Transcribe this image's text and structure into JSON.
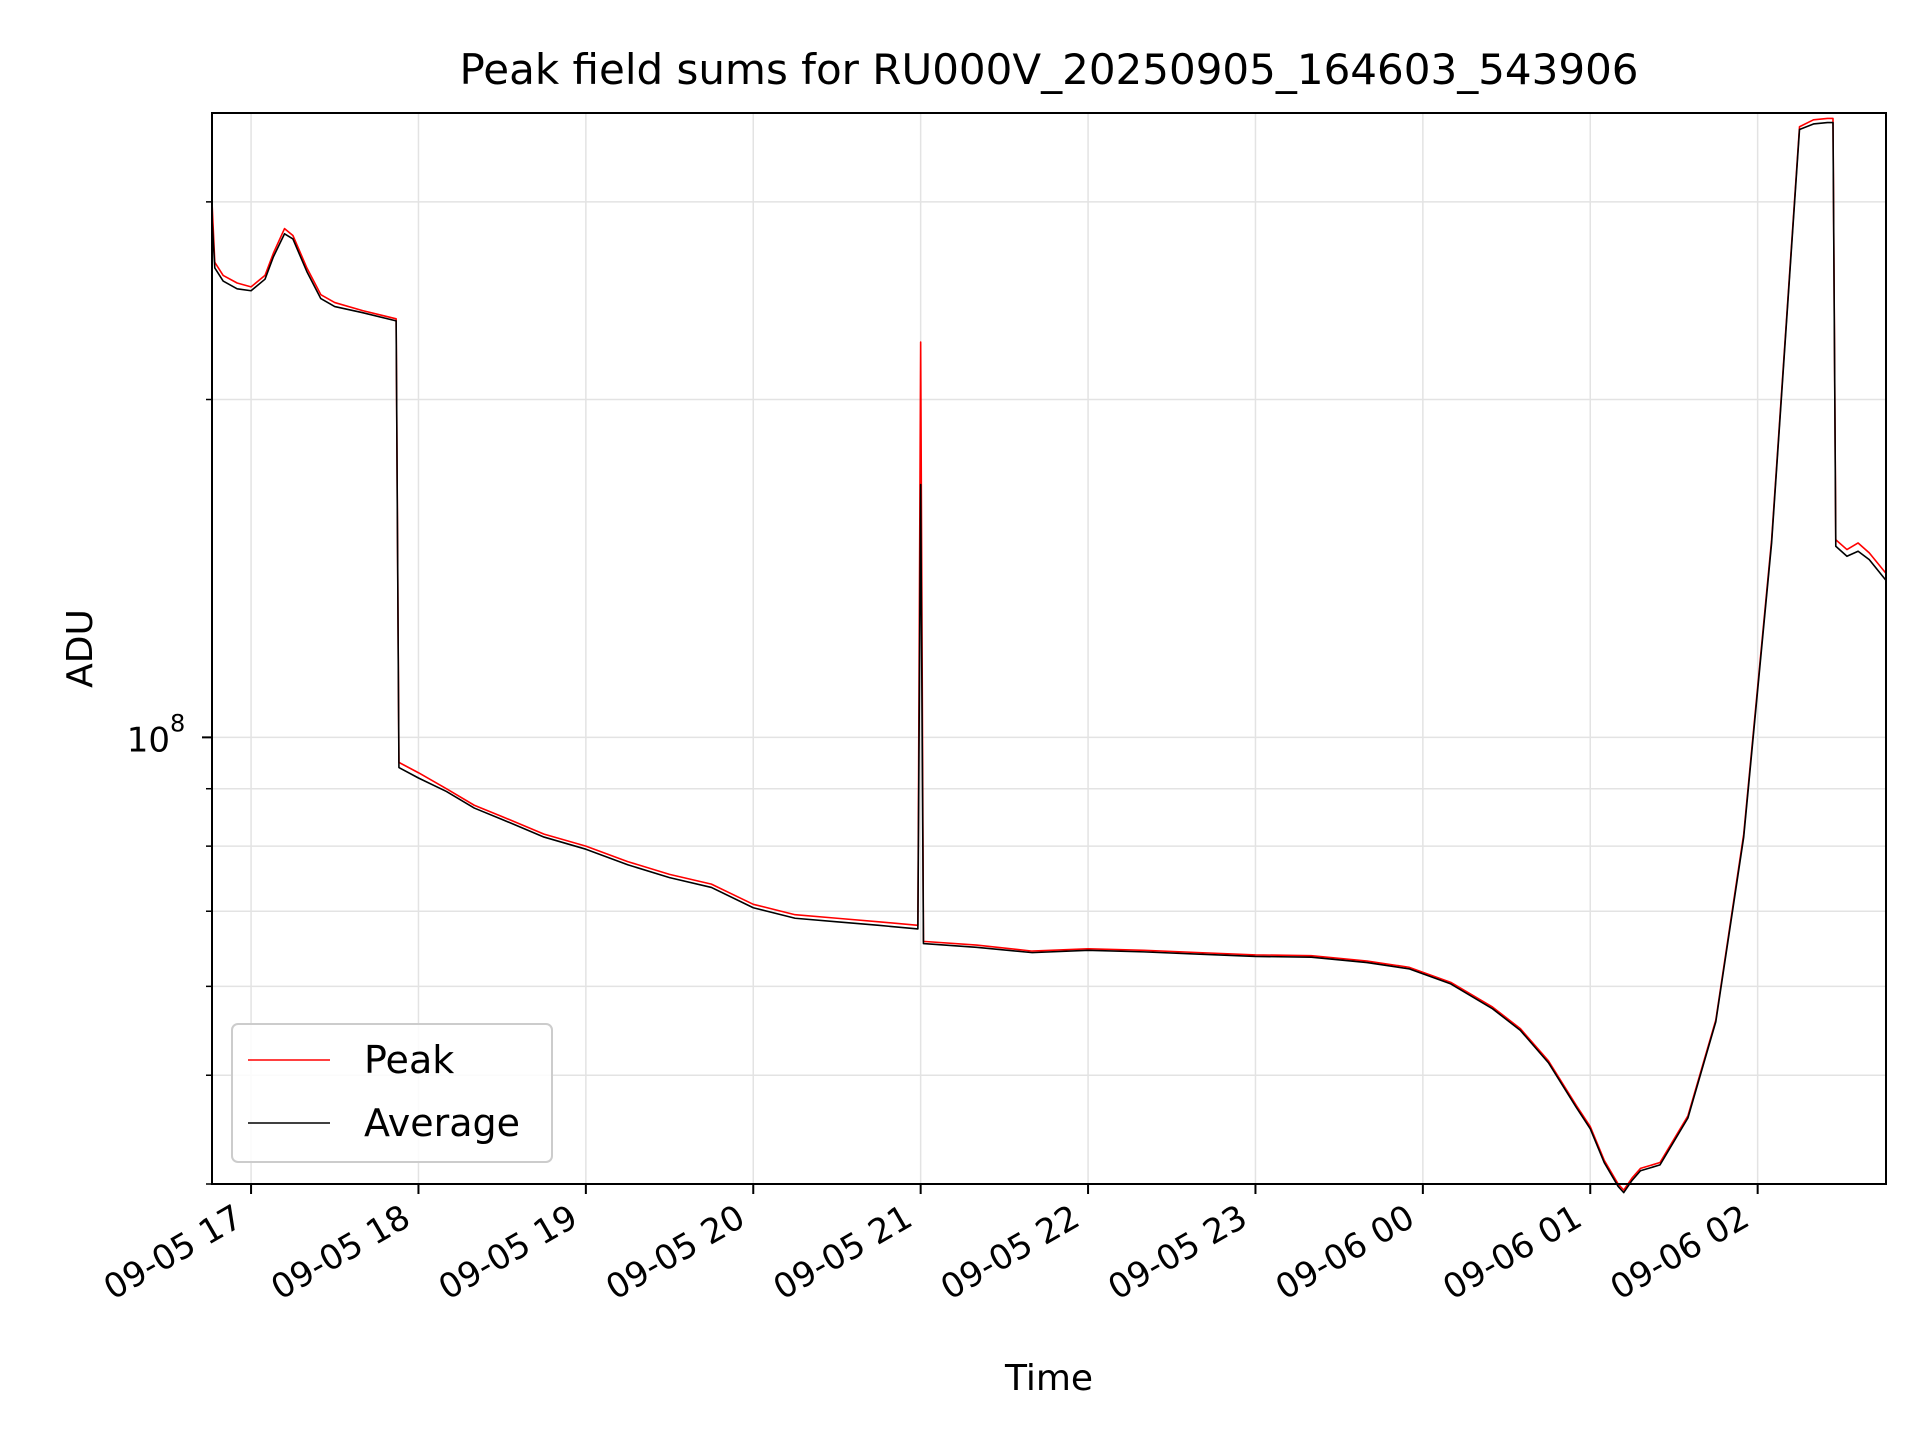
{
  "chart_data": {
    "type": "line",
    "title": "Peak field sums for RU000V_20250905_164603_543906",
    "xlabel": "Time",
    "ylabel": "ADU",
    "yscale": "log",
    "ylim": [
      40000000,
      360000000
    ],
    "xlim": [
      "2025-09-05 16:46",
      "2025-09-06 02:46"
    ],
    "x_ticks": [
      "09-05 17",
      "09-05 18",
      "09-05 19",
      "09-05 20",
      "09-05 21",
      "09-05 22",
      "09-05 23",
      "09-06 00",
      "09-06 01",
      "09-06 02"
    ],
    "x_tick_times": [
      "2025-09-05 17:00",
      "2025-09-05 18:00",
      "2025-09-05 19:00",
      "2025-09-05 20:00",
      "2025-09-05 21:00",
      "2025-09-05 22:00",
      "2025-09-05 23:00",
      "2025-09-06 00:00",
      "2025-09-06 01:00",
      "2025-09-06 02:00"
    ],
    "y_tick_label": "10",
    "y_tick_exponent": "8",
    "y_tick_value": 100000000,
    "grid": true,
    "legend": "lower-left",
    "series": [
      {
        "name": "Peak",
        "color": "#ff0000",
        "points": [
          [
            "2025-09-05 16:46",
            300000000
          ],
          [
            "2025-09-05 16:47",
            265000000
          ],
          [
            "2025-09-05 16:50",
            258000000
          ],
          [
            "2025-09-05 16:55",
            254000000
          ],
          [
            "2025-09-05 17:00",
            252000000
          ],
          [
            "2025-09-05 17:05",
            258000000
          ],
          [
            "2025-09-05 17:08",
            270000000
          ],
          [
            "2025-09-05 17:12",
            284000000
          ],
          [
            "2025-09-05 17:15",
            280000000
          ],
          [
            "2025-09-05 17:20",
            262000000
          ],
          [
            "2025-09-05 17:25",
            248000000
          ],
          [
            "2025-09-05 17:30",
            244000000
          ],
          [
            "2025-09-05 17:40",
            240000000
          ],
          [
            "2025-09-05 17:52",
            236000000
          ],
          [
            "2025-09-05 17:53",
            95000000
          ],
          [
            "2025-09-05 18:00",
            93000000
          ],
          [
            "2025-09-05 18:10",
            90000000
          ],
          [
            "2025-09-05 18:20",
            87000000
          ],
          [
            "2025-09-05 18:30",
            85000000
          ],
          [
            "2025-09-05 18:45",
            82000000
          ],
          [
            "2025-09-05 19:00",
            80000000
          ],
          [
            "2025-09-05 19:15",
            77500000
          ],
          [
            "2025-09-05 19:30",
            75500000
          ],
          [
            "2025-09-05 19:45",
            74000000
          ],
          [
            "2025-09-05 20:00",
            71000000
          ],
          [
            "2025-09-05 20:15",
            69500000
          ],
          [
            "2025-09-05 20:30",
            69000000
          ],
          [
            "2025-09-05 20:45",
            68500000
          ],
          [
            "2025-09-05 20:59",
            68000000
          ],
          [
            "2025-09-05 21:00",
            225000000
          ],
          [
            "2025-09-05 21:01",
            65800000
          ],
          [
            "2025-09-05 21:20",
            65300000
          ],
          [
            "2025-09-05 21:40",
            64500000
          ],
          [
            "2025-09-05 22:00",
            64800000
          ],
          [
            "2025-09-05 22:20",
            64600000
          ],
          [
            "2025-09-05 22:40",
            64300000
          ],
          [
            "2025-09-05 23:00",
            64000000
          ],
          [
            "2025-09-05 23:20",
            63900000
          ],
          [
            "2025-09-05 23:40",
            63200000
          ],
          [
            "2025-09-05 23:55",
            62400000
          ],
          [
            "2025-09-06 00:10",
            60500000
          ],
          [
            "2025-09-06 00:25",
            57500000
          ],
          [
            "2025-09-06 00:35",
            55000000
          ],
          [
            "2025-09-06 00:45",
            51500000
          ],
          [
            "2025-09-06 00:55",
            47000000
          ],
          [
            "2025-09-06 01:00",
            45000000
          ],
          [
            "2025-09-06 01:05",
            42000000
          ],
          [
            "2025-09-06 01:10",
            40000000
          ],
          [
            "2025-09-06 01:12",
            39500000
          ],
          [
            "2025-09-06 01:15",
            40500000
          ],
          [
            "2025-09-06 01:18",
            41300000
          ],
          [
            "2025-09-06 01:25",
            41800000
          ],
          [
            "2025-09-06 01:35",
            46000000
          ],
          [
            "2025-09-06 01:45",
            56000000
          ],
          [
            "2025-09-06 01:55",
            82000000
          ],
          [
            "2025-09-06 02:05",
            150000000
          ],
          [
            "2025-09-06 02:15",
            350000000
          ],
          [
            "2025-09-06 02:20",
            355000000
          ],
          [
            "2025-09-06 02:25",
            356000000
          ],
          [
            "2025-09-06 02:27",
            356000000
          ],
          [
            "2025-09-06 02:28",
            150000000
          ],
          [
            "2025-09-06 02:32",
            147000000
          ],
          [
            "2025-09-06 02:36",
            149000000
          ],
          [
            "2025-09-06 02:40",
            146000000
          ],
          [
            "2025-09-06 02:46",
            140000000
          ]
        ]
      },
      {
        "name": "Average",
        "color": "#000000",
        "points": [
          [
            "2025-09-05 16:46",
            290000000
          ],
          [
            "2025-09-05 16:47",
            262000000
          ],
          [
            "2025-09-05 16:50",
            255000000
          ],
          [
            "2025-09-05 16:55",
            251000000
          ],
          [
            "2025-09-05 17:00",
            250000000
          ],
          [
            "2025-09-05 17:05",
            256000000
          ],
          [
            "2025-09-05 17:08",
            268000000
          ],
          [
            "2025-09-05 17:12",
            281000000
          ],
          [
            "2025-09-05 17:15",
            278000000
          ],
          [
            "2025-09-05 17:20",
            260000000
          ],
          [
            "2025-09-05 17:25",
            246000000
          ],
          [
            "2025-09-05 17:30",
            242000000
          ],
          [
            "2025-09-05 17:40",
            239000000
          ],
          [
            "2025-09-05 17:52",
            235000000
          ],
          [
            "2025-09-05 17:53",
            94000000
          ],
          [
            "2025-09-05 18:00",
            92000000
          ],
          [
            "2025-09-05 18:10",
            89500000
          ],
          [
            "2025-09-05 18:20",
            86500000
          ],
          [
            "2025-09-05 18:30",
            84500000
          ],
          [
            "2025-09-05 18:45",
            81500000
          ],
          [
            "2025-09-05 19:00",
            79500000
          ],
          [
            "2025-09-05 19:15",
            77000000
          ],
          [
            "2025-09-05 19:30",
            75000000
          ],
          [
            "2025-09-05 19:45",
            73500000
          ],
          [
            "2025-09-05 20:00",
            70500000
          ],
          [
            "2025-09-05 20:15",
            69000000
          ],
          [
            "2025-09-05 20:30",
            68500000
          ],
          [
            "2025-09-05 20:45",
            68000000
          ],
          [
            "2025-09-05 20:59",
            67500000
          ],
          [
            "2025-09-05 21:00",
            168000000
          ],
          [
            "2025-09-05 21:01",
            65500000
          ],
          [
            "2025-09-05 21:20",
            65000000
          ],
          [
            "2025-09-05 21:40",
            64300000
          ],
          [
            "2025-09-05 22:00",
            64600000
          ],
          [
            "2025-09-05 22:20",
            64400000
          ],
          [
            "2025-09-05 22:40",
            64100000
          ],
          [
            "2025-09-05 23:00",
            63800000
          ],
          [
            "2025-09-05 23:20",
            63700000
          ],
          [
            "2025-09-05 23:40",
            63000000
          ],
          [
            "2025-09-05 23:55",
            62200000
          ],
          [
            "2025-09-06 00:10",
            60300000
          ],
          [
            "2025-09-06 00:25",
            57300000
          ],
          [
            "2025-09-06 00:35",
            54800000
          ],
          [
            "2025-09-06 00:45",
            51300000
          ],
          [
            "2025-09-06 00:55",
            46800000
          ],
          [
            "2025-09-06 01:00",
            44800000
          ],
          [
            "2025-09-06 01:05",
            41800000
          ],
          [
            "2025-09-06 01:10",
            39800000
          ],
          [
            "2025-09-06 01:12",
            39300000
          ],
          [
            "2025-09-06 01:15",
            40300000
          ],
          [
            "2025-09-06 01:18",
            41100000
          ],
          [
            "2025-09-06 01:25",
            41600000
          ],
          [
            "2025-09-06 01:35",
            45800000
          ],
          [
            "2025-09-06 01:45",
            55800000
          ],
          [
            "2025-09-06 01:55",
            81500000
          ],
          [
            "2025-09-06 02:05",
            149000000
          ],
          [
            "2025-09-06 02:15",
            348000000
          ],
          [
            "2025-09-06 02:20",
            352000000
          ],
          [
            "2025-09-06 02:25",
            353000000
          ],
          [
            "2025-09-06 02:27",
            353000000
          ],
          [
            "2025-09-06 02:28",
            148000000
          ],
          [
            "2025-09-06 02:32",
            145000000
          ],
          [
            "2025-09-06 02:36",
            146500000
          ],
          [
            "2025-09-06 02:40",
            144000000
          ],
          [
            "2025-09-06 02:46",
            138000000
          ]
        ]
      }
    ]
  }
}
